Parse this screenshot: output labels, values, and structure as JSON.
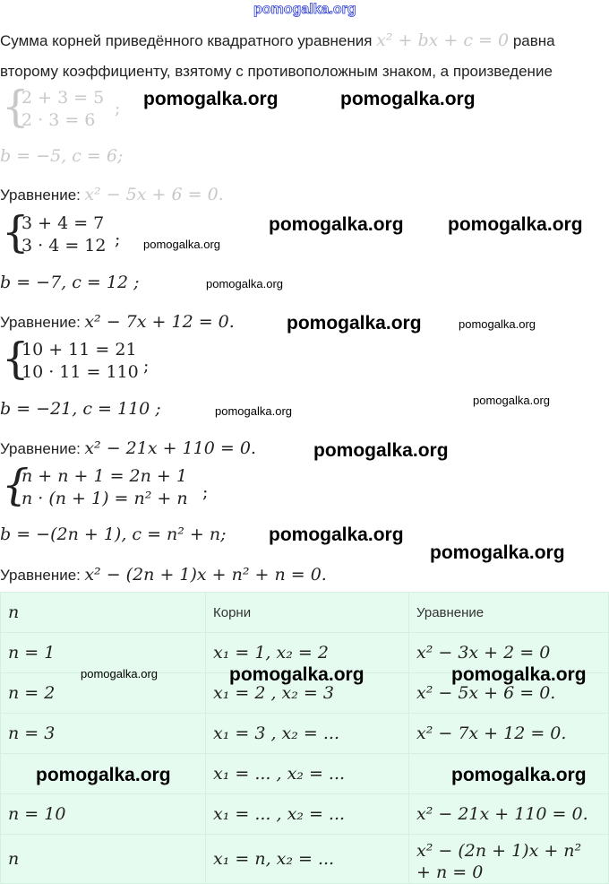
{
  "watermark": "pomogalka.org",
  "intro": {
    "line1": "Сумма корней приведённого квадратного уравнения",
    "line1_math": "x² + bx + c = 0",
    "line1_end": "равна",
    "line2": "второму коэффициенту, взятому с противоположным знаком, а произведение"
  },
  "equation_label": "Уравнение:",
  "blocks": [
    {
      "sys1": "2 + 3 = 5",
      "sys2": "2 · 3 = 6",
      "bc": "b = −5,  c = 6;",
      "eq": "x² − 5x + 6 = 0."
    },
    {
      "sys1": "3 + 4 = 7",
      "sys2": "3 · 4 = 12",
      "bc": "b = −7,  c = 12 ;",
      "eq": "x² − 7x + 12 = 0."
    },
    {
      "sys1": "10 + 11 = 21",
      "sys2": "10 · 11 = 110",
      "bc": "b = −21,  c = 110 ;",
      "eq": "x² − 21x + 110 = 0."
    },
    {
      "sys1": "n + n + 1 = 2n + 1",
      "sys2": "n · (n + 1) = n² + n",
      "bc": "b = −(2n + 1),  c = n² + n;",
      "eq": "x² − (2n + 1)x + n² + n = 0."
    }
  ],
  "semicolon": ";",
  "table": {
    "headers": [
      "n",
      "Корни",
      "Уравнение"
    ],
    "rows": [
      [
        "n = 1",
        "x₁ = 1, x₂ = 2",
        "x² − 3x + 2 = 0"
      ],
      [
        "n = 2",
        "x₁ = 2 , x₂ = 3",
        "x² − 5x + 6 = 0."
      ],
      [
        "n = 3",
        "x₁ = 3 , x₂ = ...",
        "x² − 7x + 12 = 0."
      ],
      [
        "",
        "x₁ = ... , x₂ = ...",
        ""
      ],
      [
        "n = 10",
        "x₁ = ... , x₂ = ...",
        "x² − 21x + 110 = 0."
      ],
      [
        "n",
        "x₁ = n, x₂ = ...",
        "x² − (2n + 1)x + n² + n = 0"
      ]
    ]
  }
}
